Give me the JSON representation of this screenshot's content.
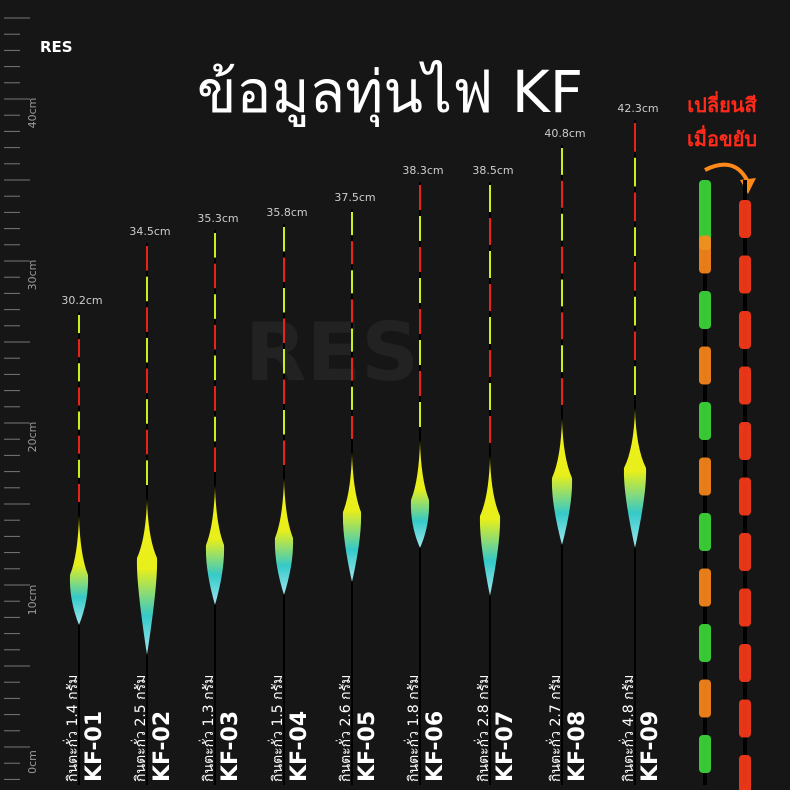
{
  "logo": "RES",
  "title": "ข้อมูลทุ่นไฟ KF",
  "ruler": [
    "0cm",
    "10cm",
    "20cm",
    "30cm",
    "40cm"
  ],
  "floats": [
    {
      "length": "30.2cm",
      "name": "KF-01",
      "weight": "กินตะกั่ว 1.4 กรัม"
    },
    {
      "length": "34.5cm",
      "name": "KF-02",
      "weight": "กินตะกั่ว 2.5 กรัม"
    },
    {
      "length": "35.3cm",
      "name": "KF-03",
      "weight": "กินตะกั่ว 1.3 กรัม"
    },
    {
      "length": "35.8cm",
      "name": "KF-04",
      "weight": "กินตะกั่ว 1.5 กรัม"
    },
    {
      "length": "37.5cm",
      "name": "KF-05",
      "weight": "กินตะกั่ว 2.6 กรัม"
    },
    {
      "length": "38.3cm",
      "name": "KF-06",
      "weight": "กินตะกั่ว 1.8 กรัม"
    },
    {
      "length": "38.5cm",
      "name": "KF-07",
      "weight": "กินตะกั่ว 2.8 กรัม"
    },
    {
      "length": "40.8cm",
      "name": "KF-08",
      "weight": "กินตะกั่ว 2.7 กรัม"
    },
    {
      "length": "42.3cm",
      "name": "KF-09",
      "weight": "กินตะกั่ว 4.8 กรัม"
    }
  ],
  "note": [
    "เปลี่ยนสี",
    "เมื่อขยับ"
  ]
}
